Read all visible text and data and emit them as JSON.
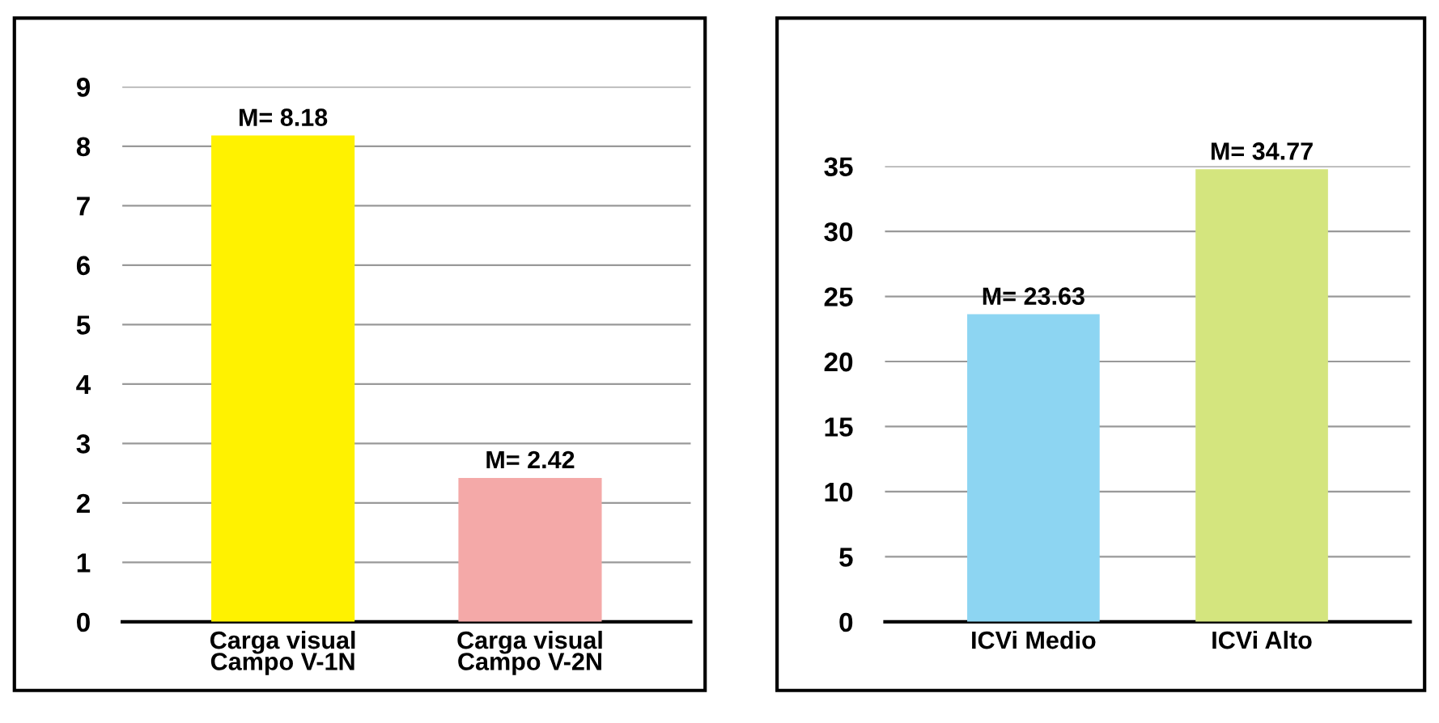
{
  "chart_data": [
    {
      "type": "bar",
      "categories": [
        "Carga visual\nCampo V-1N",
        "Carga visual\nCampo V-2N"
      ],
      "values": [
        8.18,
        2.42
      ],
      "colors": [
        "#fff200",
        "#f4a9a8"
      ],
      "value_labels": [
        "M= 8.18",
        "M= 2.42"
      ],
      "ylim": [
        0,
        9
      ],
      "yticks": [
        0,
        1,
        2,
        3,
        4,
        5,
        6,
        7,
        8,
        9
      ],
      "grid": "y"
    },
    {
      "type": "bar",
      "categories": [
        "ICVi Medio",
        "ICVi Alto"
      ],
      "values": [
        23.63,
        34.77
      ],
      "colors": [
        "#8dd5f2",
        "#d4e57e"
      ],
      "value_labels": [
        "M= 23.63",
        "M= 34.77"
      ],
      "ylim": [
        0,
        35
      ],
      "yticks": [
        0,
        5,
        10,
        15,
        20,
        25,
        30,
        35
      ],
      "grid": "y"
    }
  ]
}
